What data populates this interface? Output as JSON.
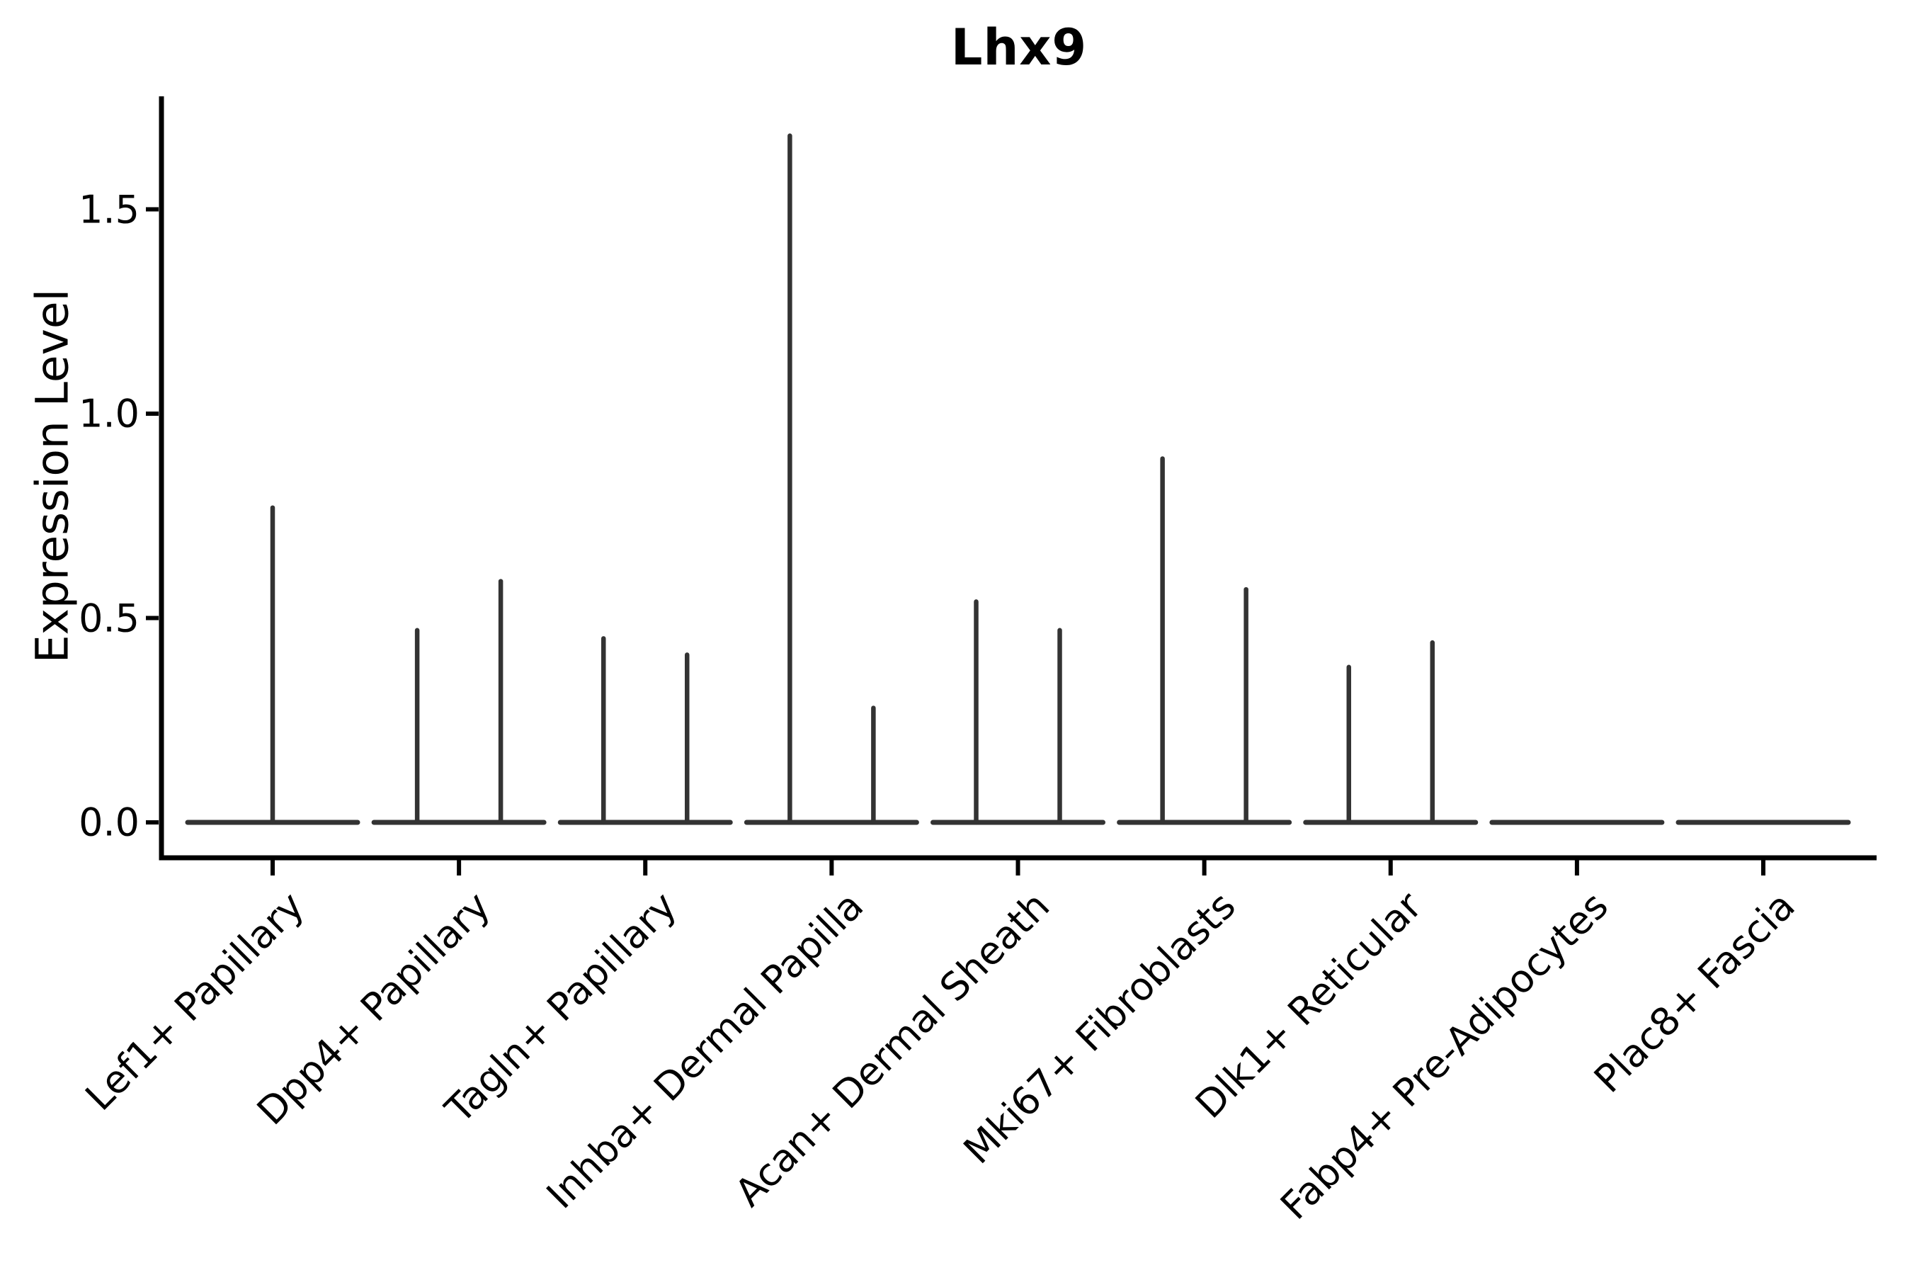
{
  "chart_data": {
    "type": "violin",
    "title": "Lhx9",
    "xlabel": "",
    "ylabel": "Expression Level",
    "yticks": [
      {
        "label": "0.0",
        "value": 0.0
      },
      {
        "label": "0.5",
        "value": 0.5
      },
      {
        "label": "1.0",
        "value": 1.0
      },
      {
        "label": "1.5",
        "value": 1.5
      }
    ],
    "ylim": [
      -0.09,
      1.77
    ],
    "grid": false,
    "legend": "none",
    "x_tick_rotation_deg": 45,
    "violins": [
      {
        "category": "Lef1+ Papillary",
        "base": 0,
        "spikes": [
          {
            "side": "center",
            "max": 0.77
          }
        ]
      },
      {
        "category": "Dpp4+ Papillary",
        "base": 0,
        "spikes": [
          {
            "side": "left",
            "max": 0.47
          },
          {
            "side": "right",
            "max": 0.59
          }
        ]
      },
      {
        "category": "Tagln+ Papillary",
        "base": 0,
        "spikes": [
          {
            "side": "left",
            "max": 0.45
          },
          {
            "side": "right",
            "max": 0.41
          }
        ]
      },
      {
        "category": "Inhba+ Dermal Papilla",
        "base": 0,
        "spikes": [
          {
            "side": "left",
            "max": 1.68
          },
          {
            "side": "right",
            "max": 0.28
          }
        ]
      },
      {
        "category": "Acan+ Dermal Sheath",
        "base": 0,
        "spikes": [
          {
            "side": "left",
            "max": 0.54
          },
          {
            "side": "right",
            "max": 0.47
          }
        ]
      },
      {
        "category": "Mki67+ Fibroblasts",
        "base": 0,
        "spikes": [
          {
            "side": "left",
            "max": 0.89
          },
          {
            "side": "right",
            "max": 0.57
          }
        ]
      },
      {
        "category": "Dlk1+ Reticular",
        "base": 0,
        "spikes": [
          {
            "side": "left",
            "max": 0.38
          },
          {
            "side": "right",
            "max": 0.44
          }
        ]
      },
      {
        "category": "Fabp4+ Pre-Adipocytes",
        "base": 0,
        "spikes": []
      },
      {
        "category": "Plac8+ Fascia",
        "base": 0,
        "spikes": []
      }
    ],
    "colors": {
      "violin_line": "#333333",
      "axis": "#000000",
      "text": "#000000",
      "background": "#ffffff"
    }
  }
}
